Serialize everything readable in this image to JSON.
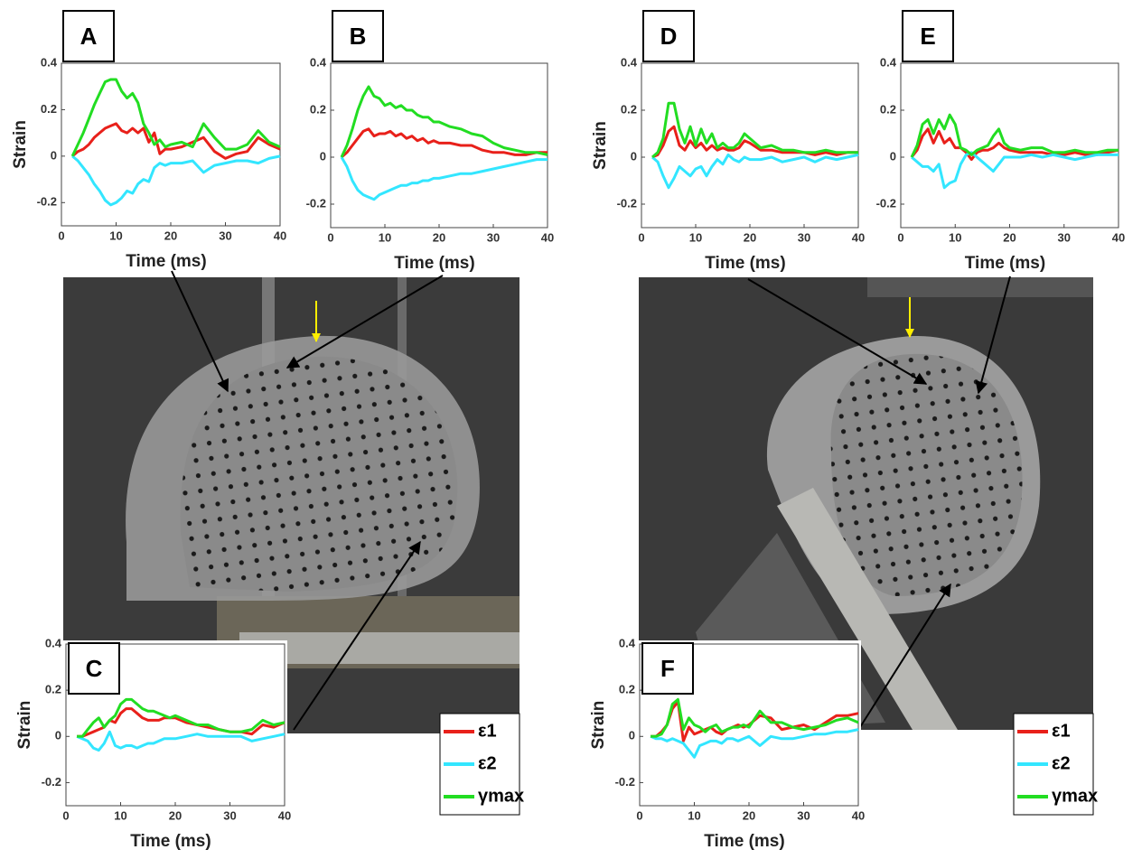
{
  "chart_data": [
    {
      "type": "line",
      "title": "A",
      "ylabel": "Strain",
      "xlabel": "Time (ms)",
      "x": [
        2,
        3,
        4,
        5,
        6,
        7,
        8,
        9,
        10,
        11,
        12,
        13,
        14,
        15,
        16,
        17,
        18,
        19,
        20,
        22,
        24,
        26,
        28,
        30,
        32,
        34,
        36,
        38,
        40
      ],
      "xlim": [
        0,
        40
      ],
      "xticks": [
        0,
        10,
        20,
        30,
        40
      ],
      "ylim": [
        -0.3,
        0.4
      ],
      "yticks": [
        -0.2,
        0,
        0.2,
        0.4
      ],
      "legend": false,
      "series": [
        {
          "name": "ε1",
          "color": "#e8201a",
          "values": [
            0,
            0.02,
            0.03,
            0.05,
            0.08,
            0.1,
            0.12,
            0.13,
            0.14,
            0.11,
            0.1,
            0.12,
            0.1,
            0.12,
            0.06,
            0.1,
            0.01,
            0.03,
            0.03,
            0.04,
            0.06,
            0.08,
            0.02,
            -0.01,
            0.01,
            0.02,
            0.08,
            0.05,
            0.03
          ]
        },
        {
          "name": "ε2",
          "color": "#33e6ff",
          "values": [
            0,
            -0.02,
            -0.05,
            -0.08,
            -0.12,
            -0.15,
            -0.19,
            -0.21,
            -0.2,
            -0.18,
            -0.15,
            -0.16,
            -0.12,
            -0.1,
            -0.11,
            -0.05,
            -0.03,
            -0.04,
            -0.03,
            -0.03,
            -0.02,
            -0.07,
            -0.04,
            -0.03,
            -0.02,
            -0.02,
            -0.03,
            -0.01,
            0
          ]
        },
        {
          "name": "γmax",
          "color": "#22dd22",
          "values": [
            0,
            0.05,
            0.1,
            0.16,
            0.22,
            0.27,
            0.32,
            0.33,
            0.33,
            0.28,
            0.25,
            0.27,
            0.23,
            0.14,
            0.1,
            0.05,
            0.07,
            0.04,
            0.05,
            0.06,
            0.04,
            0.14,
            0.08,
            0.03,
            0.03,
            0.05,
            0.11,
            0.06,
            0.04
          ]
        }
      ]
    },
    {
      "type": "line",
      "title": "B",
      "xlabel": "Time (ms)",
      "x": [
        2,
        3,
        4,
        5,
        6,
        7,
        8,
        9,
        10,
        11,
        12,
        13,
        14,
        15,
        16,
        17,
        18,
        19,
        20,
        22,
        24,
        26,
        28,
        30,
        32,
        34,
        36,
        38,
        40
      ],
      "xlim": [
        0,
        40
      ],
      "xticks": [
        0,
        10,
        20,
        30,
        40
      ],
      "ylim": [
        -0.3,
        0.4
      ],
      "yticks": [
        -0.2,
        0,
        0.2,
        0.4
      ],
      "legend": false,
      "series": [
        {
          "name": "ε1",
          "color": "#e8201a",
          "values": [
            0,
            0.02,
            0.05,
            0.08,
            0.11,
            0.12,
            0.09,
            0.1,
            0.1,
            0.11,
            0.09,
            0.1,
            0.08,
            0.09,
            0.07,
            0.08,
            0.06,
            0.07,
            0.06,
            0.06,
            0.05,
            0.05,
            0.03,
            0.02,
            0.02,
            0.01,
            0.01,
            0.02,
            0.02
          ]
        },
        {
          "name": "ε2",
          "color": "#33e6ff",
          "values": [
            0,
            -0.04,
            -0.1,
            -0.14,
            -0.16,
            -0.17,
            -0.18,
            -0.16,
            -0.15,
            -0.14,
            -0.13,
            -0.12,
            -0.12,
            -0.11,
            -0.11,
            -0.1,
            -0.1,
            -0.09,
            -0.09,
            -0.08,
            -0.07,
            -0.07,
            -0.06,
            -0.05,
            -0.04,
            -0.03,
            -0.02,
            -0.01,
            -0.01
          ]
        },
        {
          "name": "γmax",
          "color": "#22dd22",
          "values": [
            0,
            0.05,
            0.12,
            0.2,
            0.26,
            0.3,
            0.26,
            0.25,
            0.22,
            0.23,
            0.21,
            0.22,
            0.2,
            0.2,
            0.18,
            0.17,
            0.17,
            0.15,
            0.15,
            0.13,
            0.12,
            0.1,
            0.09,
            0.06,
            0.04,
            0.03,
            0.02,
            0.02,
            0.01
          ]
        }
      ]
    },
    {
      "type": "line",
      "title": "D",
      "ylabel": "Strain",
      "xlabel": "Time (ms)",
      "x": [
        2,
        3,
        4,
        5,
        6,
        7,
        8,
        9,
        10,
        11,
        12,
        13,
        14,
        15,
        16,
        17,
        18,
        19,
        20,
        22,
        24,
        26,
        28,
        30,
        32,
        34,
        36,
        38,
        40
      ],
      "xlim": [
        0,
        40
      ],
      "xticks": [
        0,
        10,
        20,
        30,
        40
      ],
      "ylim": [
        -0.3,
        0.4
      ],
      "yticks": [
        -0.2,
        0,
        0.2,
        0.4
      ],
      "legend": false,
      "series": [
        {
          "name": "ε1",
          "color": "#e8201a",
          "values": [
            0,
            0.01,
            0.05,
            0.11,
            0.13,
            0.05,
            0.03,
            0.07,
            0.04,
            0.06,
            0.03,
            0.05,
            0.03,
            0.04,
            0.03,
            0.03,
            0.04,
            0.07,
            0.06,
            0.03,
            0.03,
            0.02,
            0.02,
            0.02,
            0.01,
            0.02,
            0.01,
            0.02,
            0.02
          ]
        },
        {
          "name": "ε2",
          "color": "#33e6ff",
          "values": [
            0,
            -0.02,
            -0.08,
            -0.13,
            -0.09,
            -0.04,
            -0.06,
            -0.08,
            -0.05,
            -0.04,
            -0.08,
            -0.04,
            -0.01,
            -0.03,
            0.01,
            -0.01,
            -0.02,
            0,
            -0.01,
            -0.01,
            0,
            -0.02,
            -0.01,
            0,
            -0.02,
            0,
            -0.01,
            0,
            0.01
          ]
        },
        {
          "name": "γmax",
          "color": "#22dd22",
          "values": [
            0,
            0.02,
            0.08,
            0.23,
            0.23,
            0.12,
            0.06,
            0.13,
            0.05,
            0.12,
            0.06,
            0.1,
            0.04,
            0.06,
            0.04,
            0.04,
            0.06,
            0.1,
            0.08,
            0.04,
            0.05,
            0.03,
            0.03,
            0.02,
            0.02,
            0.03,
            0.02,
            0.02,
            0.02
          ]
        }
      ]
    },
    {
      "type": "line",
      "title": "E",
      "xlabel": "Time (ms)",
      "x": [
        2,
        3,
        4,
        5,
        6,
        7,
        8,
        9,
        10,
        11,
        12,
        13,
        14,
        15,
        16,
        17,
        18,
        19,
        20,
        22,
        24,
        26,
        28,
        30,
        32,
        34,
        36,
        38,
        40
      ],
      "xlim": [
        0,
        40
      ],
      "xticks": [
        0,
        10,
        20,
        30,
        40
      ],
      "ylim": [
        -0.3,
        0.4
      ],
      "yticks": [
        -0.2,
        0,
        0.2,
        0.4
      ],
      "legend": false,
      "series": [
        {
          "name": "ε1",
          "color": "#e8201a",
          "values": [
            0,
            0.03,
            0.09,
            0.12,
            0.06,
            0.11,
            0.06,
            0.08,
            0.04,
            0.04,
            0.02,
            -0.01,
            0.02,
            0.03,
            0.03,
            0.04,
            0.06,
            0.04,
            0.03,
            0.02,
            0.02,
            0.02,
            0.01,
            0.01,
            0.02,
            0.01,
            0.01,
            0.02,
            0.03
          ]
        },
        {
          "name": "ε2",
          "color": "#33e6ff",
          "values": [
            0,
            -0.02,
            -0.04,
            -0.04,
            -0.06,
            -0.03,
            -0.13,
            -0.11,
            -0.1,
            -0.03,
            0.01,
            0.02,
            0,
            -0.02,
            -0.04,
            -0.06,
            -0.03,
            0,
            0,
            0,
            0.01,
            0,
            0.01,
            0,
            -0.01,
            0,
            0.01,
            0.01,
            0.01
          ]
        },
        {
          "name": "γmax",
          "color": "#22dd22",
          "values": [
            0,
            0.05,
            0.14,
            0.16,
            0.1,
            0.16,
            0.12,
            0.18,
            0.14,
            0.04,
            0.03,
            0.01,
            0.03,
            0.04,
            0.05,
            0.09,
            0.12,
            0.06,
            0.04,
            0.03,
            0.04,
            0.04,
            0.02,
            0.02,
            0.03,
            0.02,
            0.02,
            0.03,
            0.03
          ]
        }
      ]
    },
    {
      "type": "line",
      "title": "C",
      "ylabel": "Strain",
      "xlabel": "Time (ms)",
      "x": [
        2,
        3,
        4,
        5,
        6,
        7,
        8,
        9,
        10,
        11,
        12,
        13,
        14,
        15,
        16,
        17,
        18,
        19,
        20,
        22,
        24,
        26,
        28,
        30,
        32,
        34,
        36,
        38,
        40
      ],
      "xlim": [
        0,
        40
      ],
      "xticks": [
        0,
        10,
        20,
        30,
        40
      ],
      "ylim": [
        -0.3,
        0.4
      ],
      "yticks": [
        -0.2,
        0,
        0.2,
        0.4
      ],
      "legend": true,
      "series": [
        {
          "name": "ε1",
          "color": "#e8201a",
          "values": [
            0,
            0,
            0.01,
            0.02,
            0.03,
            0.04,
            0.07,
            0.06,
            0.1,
            0.12,
            0.12,
            0.1,
            0.08,
            0.07,
            0.07,
            0.07,
            0.08,
            0.08,
            0.08,
            0.06,
            0.05,
            0.04,
            0.03,
            0.02,
            0.02,
            0.01,
            0.05,
            0.04,
            0.06
          ]
        },
        {
          "name": "ε2",
          "color": "#33e6ff",
          "values": [
            0,
            -0.01,
            -0.02,
            -0.05,
            -0.06,
            -0.03,
            0.02,
            -0.04,
            -0.05,
            -0.04,
            -0.04,
            -0.05,
            -0.04,
            -0.03,
            -0.03,
            -0.02,
            -0.01,
            -0.01,
            -0.01,
            0,
            0.01,
            0,
            0,
            0,
            0,
            -0.02,
            -0.01,
            0,
            0.01
          ]
        },
        {
          "name": "γmax",
          "color": "#22dd22",
          "values": [
            0,
            0,
            0.03,
            0.06,
            0.08,
            0.04,
            0.07,
            0.09,
            0.14,
            0.16,
            0.16,
            0.14,
            0.12,
            0.11,
            0.11,
            0.1,
            0.09,
            0.08,
            0.09,
            0.07,
            0.05,
            0.05,
            0.03,
            0.02,
            0.02,
            0.03,
            0.07,
            0.05,
            0.06
          ]
        }
      ]
    },
    {
      "type": "line",
      "title": "F",
      "ylabel": "Strain",
      "xlabel": "Time (ms)",
      "x": [
        2,
        3,
        4,
        5,
        6,
        7,
        8,
        9,
        10,
        11,
        12,
        13,
        14,
        15,
        16,
        17,
        18,
        19,
        20,
        22,
        24,
        26,
        28,
        30,
        32,
        34,
        36,
        38,
        40
      ],
      "xlim": [
        0,
        40
      ],
      "xticks": [
        0,
        10,
        20,
        30,
        40
      ],
      "ylim": [
        -0.3,
        0.4
      ],
      "yticks": [
        -0.2,
        0,
        0.2,
        0.4
      ],
      "legend": true,
      "series": [
        {
          "name": "ε1",
          "color": "#e8201a",
          "values": [
            0,
            0,
            0.02,
            0.05,
            0.12,
            0.15,
            -0.02,
            0.04,
            0.01,
            0.02,
            0.03,
            0.04,
            0.02,
            0.01,
            0.03,
            0.04,
            0.05,
            0.04,
            0.05,
            0.09,
            0.08,
            0.03,
            0.04,
            0.05,
            0.03,
            0.06,
            0.09,
            0.09,
            0.1
          ]
        },
        {
          "name": "ε2",
          "color": "#33e6ff",
          "values": [
            0,
            -0.01,
            -0.01,
            -0.02,
            -0.01,
            -0.02,
            -0.03,
            -0.06,
            -0.09,
            -0.04,
            -0.03,
            -0.02,
            -0.02,
            -0.03,
            -0.01,
            -0.01,
            -0.02,
            -0.01,
            0,
            -0.04,
            0,
            -0.01,
            -0.01,
            0,
            0.01,
            0.01,
            0.02,
            0.02,
            0.03
          ]
        },
        {
          "name": "γmax",
          "color": "#22dd22",
          "values": [
            0,
            0,
            0.01,
            0.05,
            0.14,
            0.16,
            0.03,
            0.08,
            0.05,
            0.04,
            0.02,
            0.04,
            0.05,
            0.02,
            0.03,
            0.04,
            0.04,
            0.05,
            0.04,
            0.11,
            0.06,
            0.06,
            0.04,
            0.03,
            0.04,
            0.05,
            0.07,
            0.08,
            0.06
          ]
        }
      ]
    }
  ]
}
